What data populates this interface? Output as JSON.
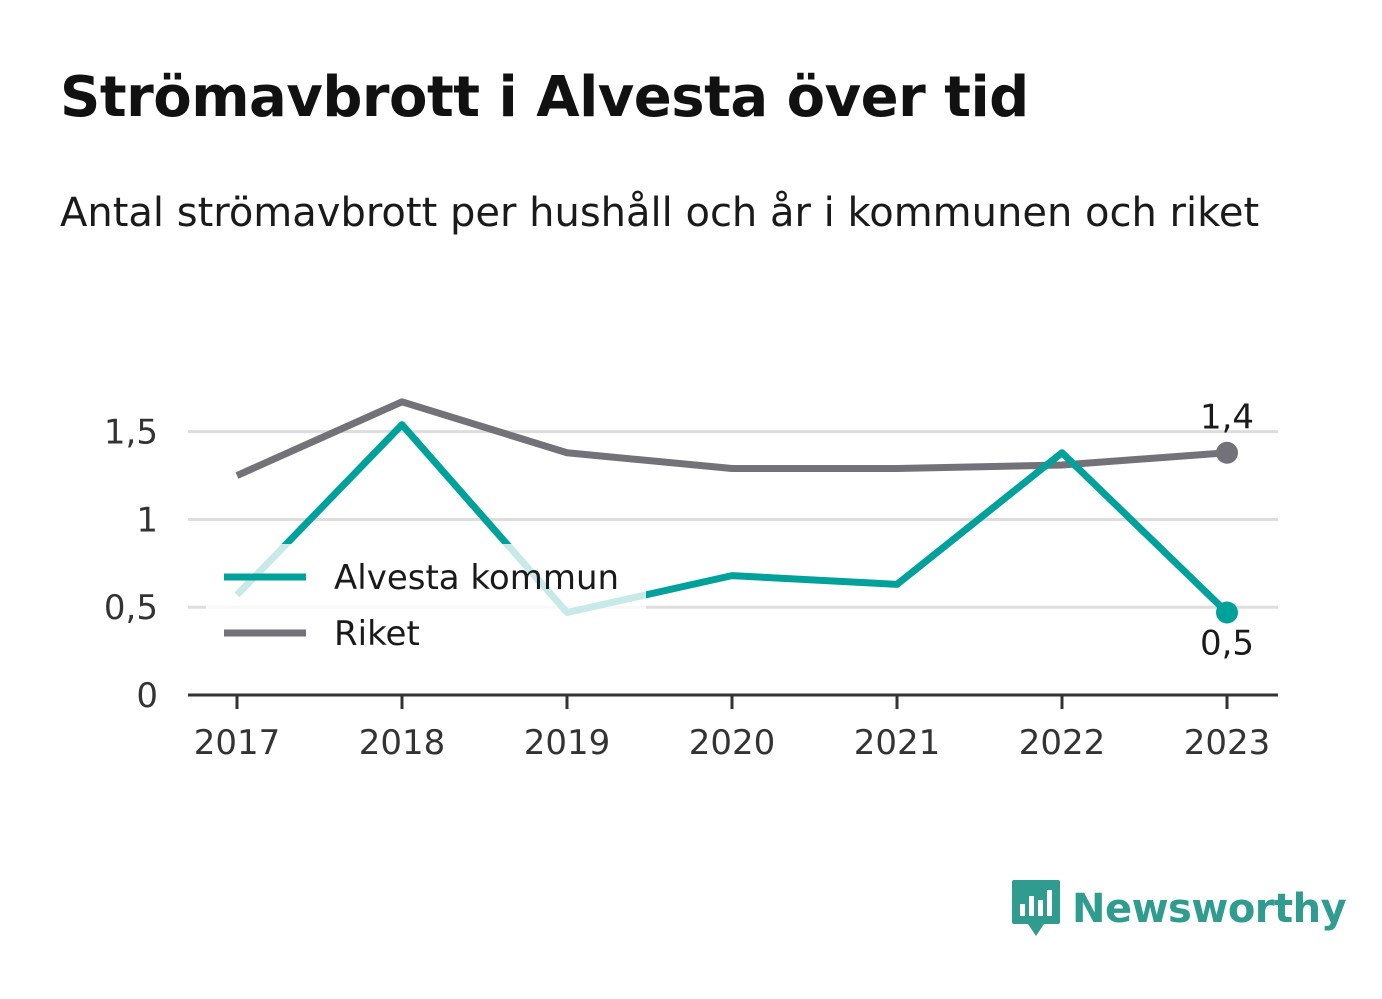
{
  "title": "Strömavbrott i Alvesta över tid",
  "subtitle": "Antal strömavbrott per hushåll och år i kommunen och riket",
  "brand": {
    "name": "Newsworthy",
    "icon": "bar-chart-speech-bubble-icon",
    "color": "#2f9c8f"
  },
  "colors": {
    "grid": "#dddddd",
    "axis": "#333333",
    "tick_text": "#333333"
  },
  "chart_data": {
    "type": "line",
    "title": "Strömavbrott i Alvesta över tid",
    "subtitle": "Antal strömavbrott per hushåll och år i kommunen och riket",
    "x": [
      "2017",
      "2018",
      "2019",
      "2020",
      "2021",
      "2022",
      "2023"
    ],
    "ylim": [
      0,
      1.8
    ],
    "yticks": [
      0,
      0.5,
      1,
      1.5
    ],
    "ytick_labels": [
      "0",
      "0,5",
      "1",
      "1,5"
    ],
    "grid": true,
    "legend_position": "left-middle",
    "series": [
      {
        "name": "Alvesta kommun",
        "color": "#00a19a",
        "values": [
          0.57,
          1.54,
          0.47,
          0.68,
          0.63,
          1.38,
          0.47
        ],
        "end_label": "0,5"
      },
      {
        "name": "Riket",
        "color": "#737278",
        "values": [
          1.25,
          1.67,
          1.38,
          1.29,
          1.29,
          1.31,
          1.38
        ],
        "end_label": "1,4"
      }
    ]
  }
}
